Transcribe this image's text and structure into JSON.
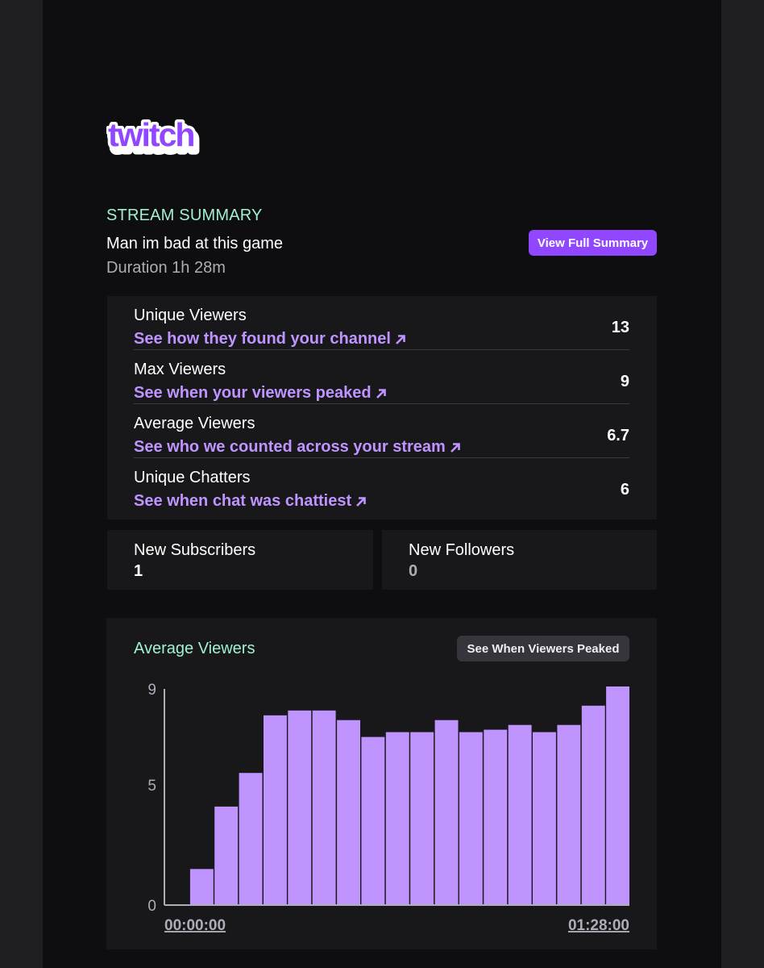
{
  "brand": {
    "logo_text": "twitch",
    "logo_color": "#9147ff"
  },
  "summary": {
    "section_tag": "STREAM SUMMARY",
    "stream_title": "Man im bad at this game",
    "duration": "Duration 1h 28m",
    "view_full_label": "View Full Summary"
  },
  "stats": [
    {
      "label": "Unique Viewers",
      "link": "See how they found your channel",
      "value": "13"
    },
    {
      "label": "Max Viewers",
      "link": "See when your viewers peaked",
      "value": "9"
    },
    {
      "label": "Average Viewers",
      "link": "See who we counted across your stream",
      "value": "6.7"
    },
    {
      "label": "Unique Chatters",
      "link": "See when chat was chattiest",
      "value": "6"
    }
  ],
  "new_subscribers": {
    "label": "New Subscribers",
    "value": "1"
  },
  "new_followers": {
    "label": "New Followers",
    "value": "0"
  },
  "chart_section": {
    "title": "Average Viewers",
    "peak_button_label": "See When Viewers Peaked"
  },
  "colors": {
    "accent": "#9147ff",
    "link": "#bf94ff",
    "bar": "#bf94ff",
    "mint": "#a1f0d2"
  },
  "chart_data": {
    "type": "bar",
    "title": "Average Viewers",
    "xlabel": "",
    "ylabel": "",
    "x_start_label": "00:00:00",
    "x_end_label": "01:28:00",
    "yticks": [
      "0",
      "5",
      "9"
    ],
    "ylim": [
      0,
      9
    ],
    "values": [
      0,
      1.5,
      4.1,
      5.5,
      7.9,
      8.1,
      8.1,
      7.7,
      7.0,
      7.2,
      7.2,
      7.7,
      7.2,
      7.3,
      7.5,
      7.2,
      7.5,
      8.3,
      9.1
    ]
  }
}
